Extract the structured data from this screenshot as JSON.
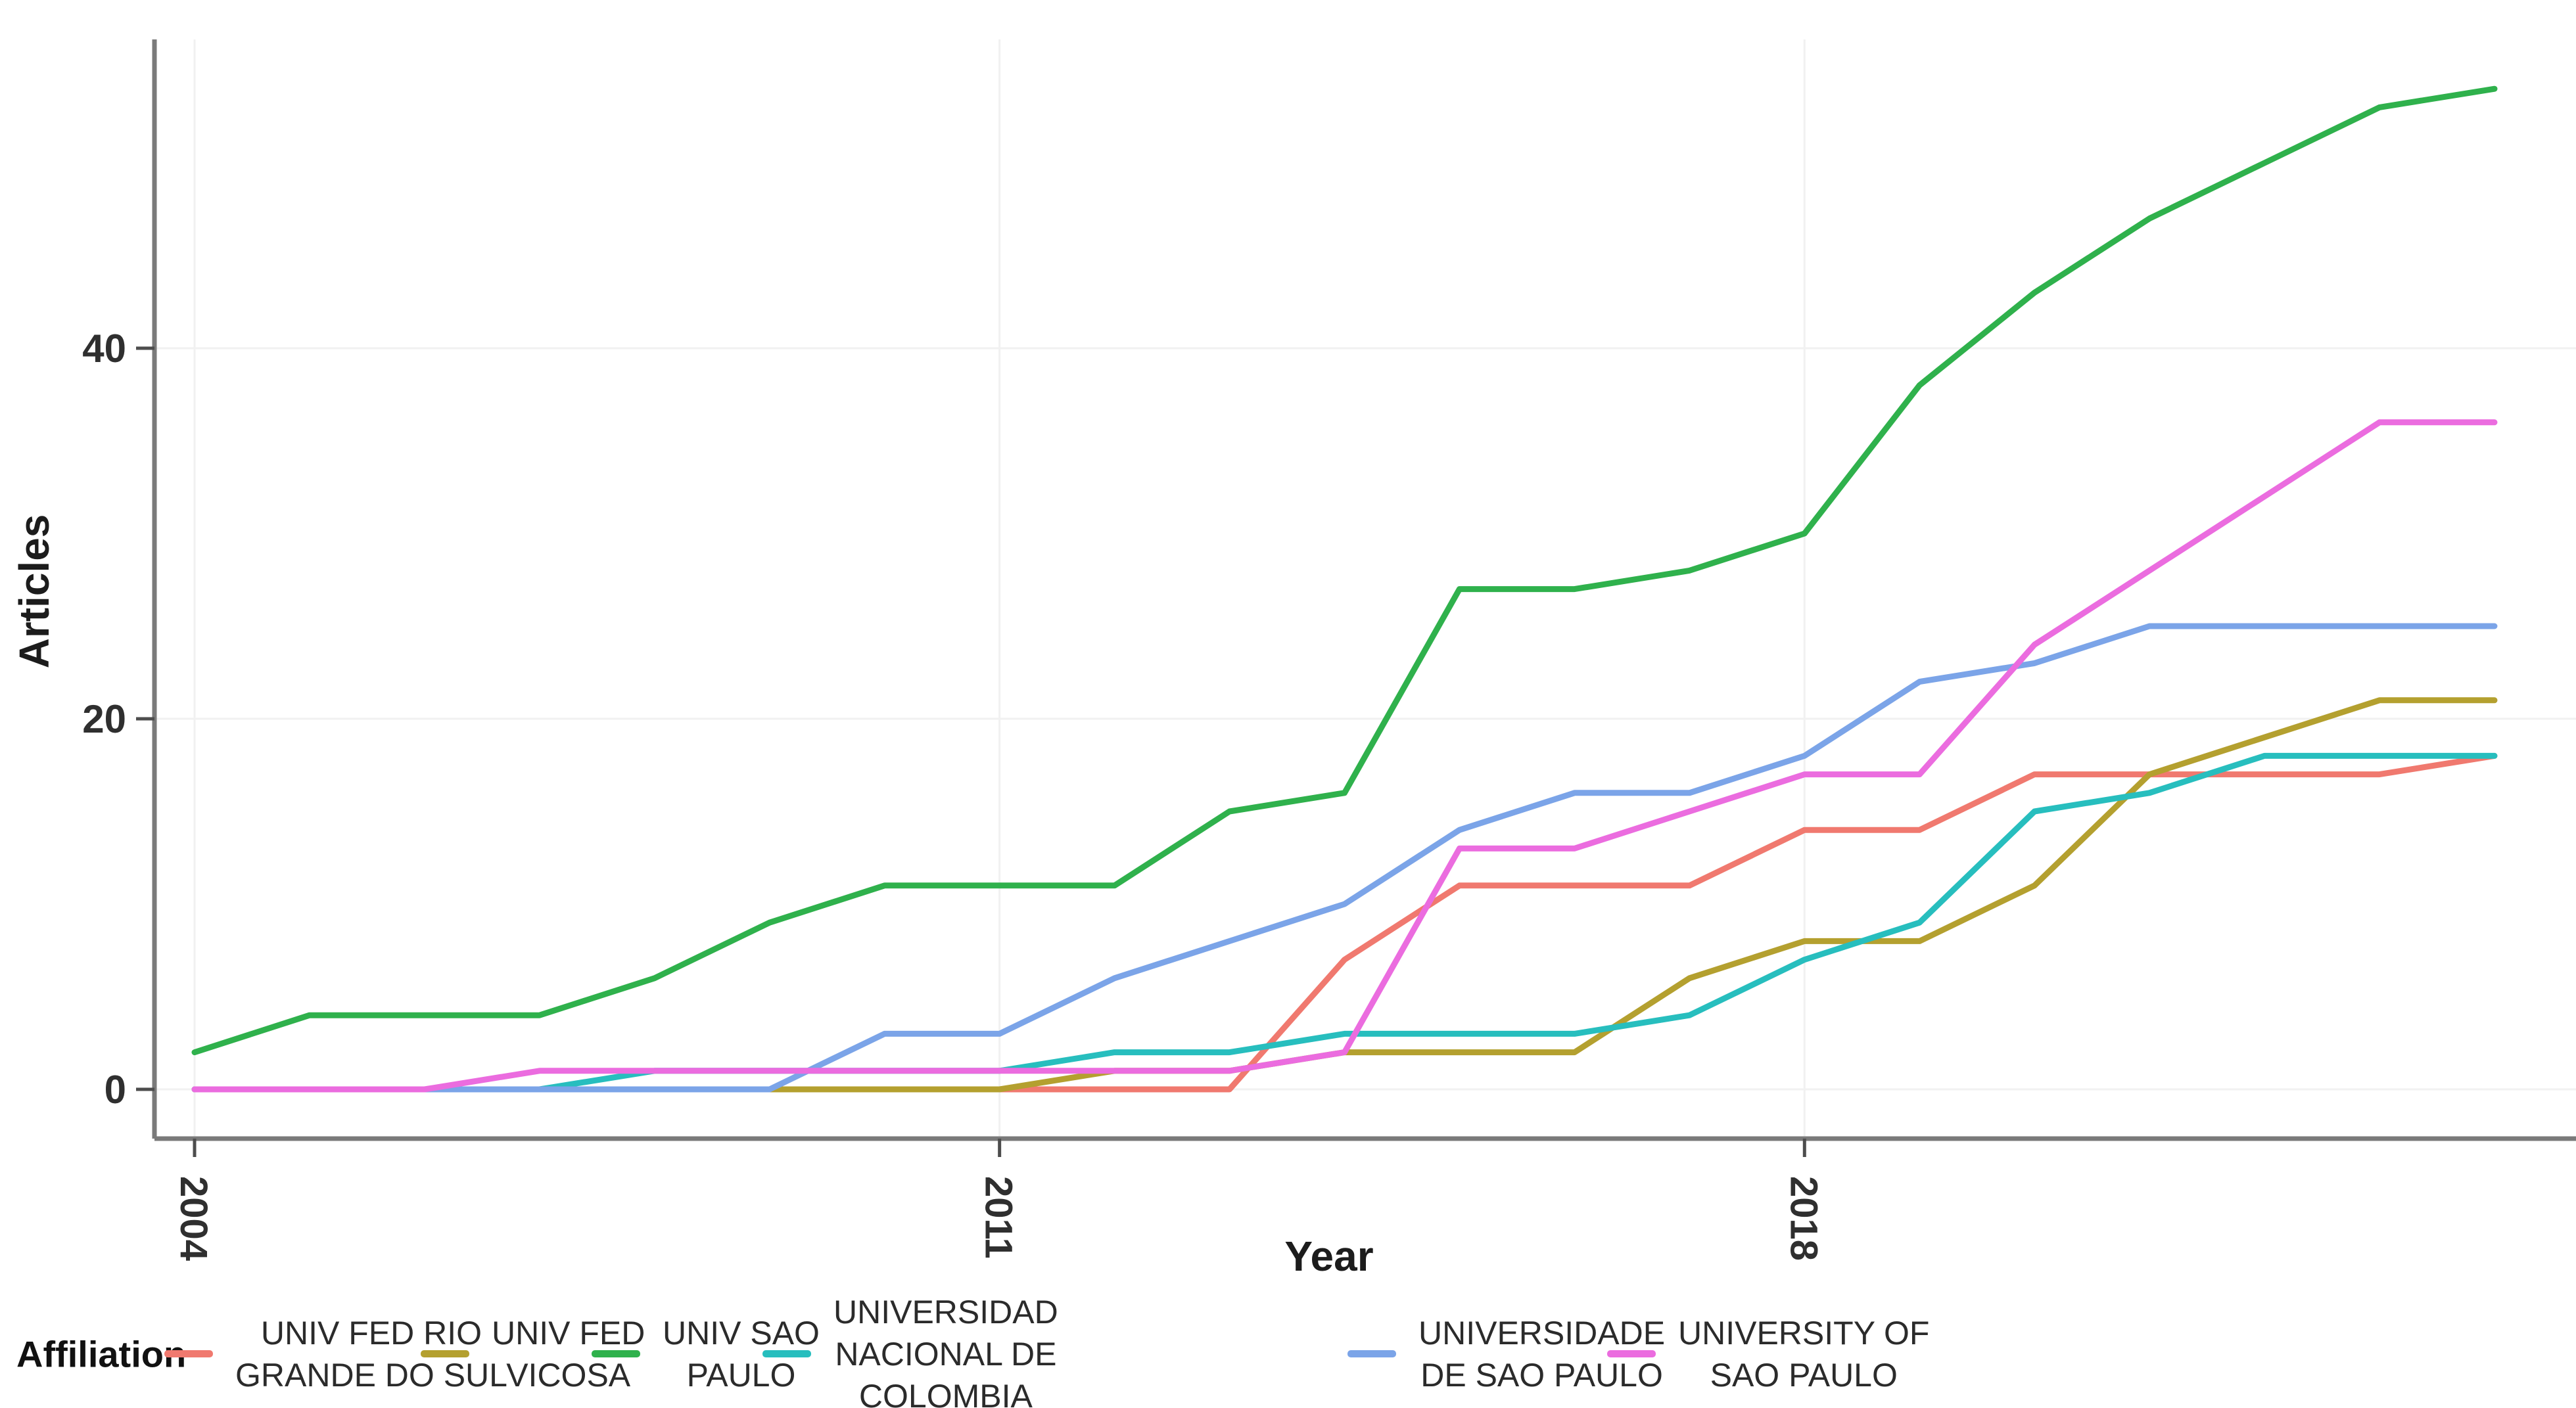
{
  "figure": {
    "y_title": "Articles",
    "x_title": "Year"
  },
  "legend": {
    "title": "Affiliation",
    "position": "bottom"
  },
  "chart_data": {
    "type": "line",
    "title": "",
    "xlabel": "Year",
    "ylabel": "Articles",
    "x": [
      2004,
      2005,
      2006,
      2007,
      2008,
      2009,
      2010,
      2011,
      2012,
      2013,
      2014,
      2015,
      2016,
      2017,
      2018,
      2019,
      2020,
      2021,
      2022,
      2023,
      2024
    ],
    "x_ticks": [
      2004,
      2011,
      2018
    ],
    "y_ticks": [
      0,
      20,
      40
    ],
    "xlim": [
      2004,
      2024
    ],
    "ylim": [
      0,
      56
    ],
    "grid": "major gridlines only, very light gray on white",
    "legend_position": "bottom",
    "series": [
      {
        "name": "UNIV FED RIO GRANDE DO SUL",
        "label_lines": [
          "UNIV FED RIO",
          "GRANDE DO SUL"
        ],
        "color": "#F0796F",
        "values": [
          0,
          0,
          0,
          0,
          0,
          0,
          0,
          0,
          0,
          0,
          7,
          11,
          11,
          11,
          14,
          14,
          17,
          17,
          17,
          17,
          18
        ]
      },
      {
        "name": "UNIV FED VICOSA",
        "label_lines": [
          "UNIV FED",
          "VICOSA"
        ],
        "color": "#B4A02F",
        "values": [
          0,
          0,
          0,
          0,
          0,
          0,
          0,
          0,
          1,
          1,
          2,
          2,
          2,
          6,
          8,
          8,
          11,
          17,
          19,
          21,
          21
        ]
      },
      {
        "name": "UNIV SAO PAULO",
        "label_lines": [
          "UNIV SAO",
          "PAULO"
        ],
        "color": "#2FB14C",
        "values": [
          2,
          4,
          4,
          4,
          6,
          9,
          11,
          11,
          11,
          15,
          16,
          27,
          27,
          28,
          30,
          38,
          43,
          47,
          50,
          53,
          54
        ]
      },
      {
        "name": "UNIVERSIDAD NACIONAL DE COLOMBIA",
        "label_lines": [
          "UNIVERSIDAD",
          "NACIONAL DE",
          "COLOMBIA"
        ],
        "color": "#27BEBE",
        "values": [
          0,
          0,
          0,
          0,
          1,
          1,
          1,
          1,
          2,
          2,
          3,
          3,
          3,
          4,
          7,
          9,
          15,
          16,
          18,
          18,
          18
        ]
      },
      {
        "name": "UNIVERSIDADE DE SAO PAULO",
        "label_lines": [
          "UNIVERSIDADE",
          "DE SAO PAULO"
        ],
        "color": "#7BA4E8",
        "values": [
          0,
          0,
          0,
          0,
          0,
          0,
          3,
          3,
          6,
          8,
          10,
          14,
          16,
          16,
          18,
          22,
          23,
          25,
          25,
          25,
          25
        ]
      },
      {
        "name": "UNIVERSITY OF SAO PAULO",
        "label_lines": [
          "UNIVERSITY OF",
          "SAO PAULO"
        ],
        "color": "#EB6CDF",
        "values": [
          0,
          0,
          0,
          1,
          1,
          1,
          1,
          1,
          1,
          1,
          2,
          13,
          13,
          15,
          17,
          17,
          24,
          28,
          32,
          36,
          36
        ]
      }
    ]
  }
}
